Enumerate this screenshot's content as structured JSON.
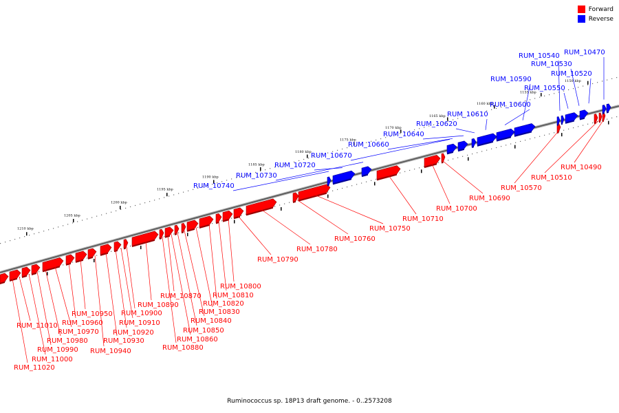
{
  "legend": {
    "forward_label": "Forward",
    "reverse_label": "Reverse",
    "forward_color": "#ff0000",
    "reverse_color": "#0000ff"
  },
  "caption": "Ruminococcus sp. 18P13 draft genome. - 0..2573208",
  "scale_labels": [
    "1150 kbp",
    "1155 kbp",
    "1160 kbp",
    "1165 kbp",
    "1170 kbp",
    "1175 kbp",
    "1180 kbp",
    "1185 kbp",
    "1190 kbp",
    "1195 kbp",
    "1200 kbp",
    "1205 kbp",
    "1210 kbp"
  ],
  "forward_genes": [
    "RUM_10490",
    "RUM_10510",
    "RUM_10570",
    "RUM_10690",
    "RUM_10700",
    "RUM_10710",
    "RUM_10750",
    "RUM_10760",
    "RUM_10780",
    "RUM_10790",
    "RUM_10800",
    "RUM_10810",
    "RUM_10820",
    "RUM_10830",
    "RUM_10840",
    "RUM_10850",
    "RUM_10860",
    "RUM_10870",
    "RUM_10880",
    "RUM_10890",
    "RUM_10900",
    "RUM_10910",
    "RUM_10920",
    "RUM_10930",
    "RUM_10940",
    "RUM_10950",
    "RUM_10960",
    "RUM_10970",
    "RUM_10980",
    "RUM_10990",
    "RUM_11000",
    "RUM_11010",
    "RUM_11020"
  ],
  "reverse_genes": [
    "RUM_10470",
    "RUM_10520",
    "RUM_10530",
    "RUM_10540",
    "RUM_10550",
    "RUM_10590",
    "RUM_10600",
    "RUM_10610",
    "RUM_10620",
    "RUM_10640",
    "RUM_10660",
    "RUM_10670",
    "RUM_10720",
    "RUM_10730",
    "RUM_10740"
  ]
}
